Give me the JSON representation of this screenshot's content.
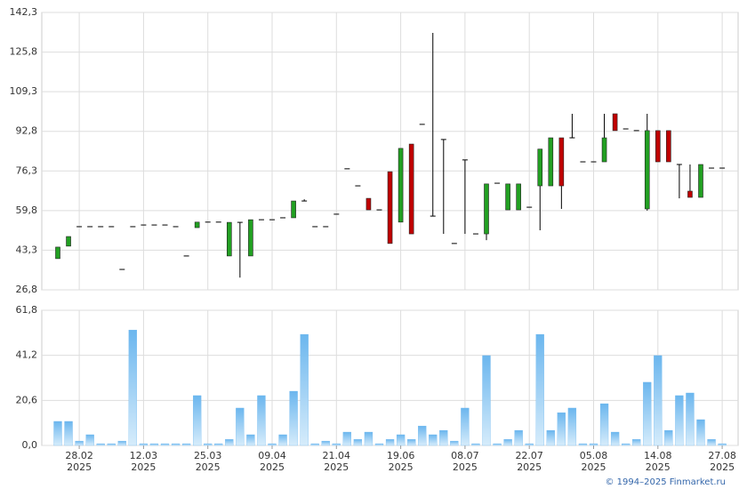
{
  "chart_data": [
    {
      "type": "candlestick",
      "ylim": [
        26.8,
        142.3
      ],
      "yticks": [
        {
          "value": 26.8,
          "label": "26,8"
        },
        {
          "value": 43.3,
          "label": "43,3"
        },
        {
          "value": 59.8,
          "label": "59,8"
        },
        {
          "value": 76.3,
          "label": "76,3"
        },
        {
          "value": 92.8,
          "label": "92,8"
        },
        {
          "value": 109.3,
          "label": "109,3"
        },
        {
          "value": 125.8,
          "label": "125,8"
        },
        {
          "value": 142.3,
          "label": "142,3"
        }
      ],
      "grid": true,
      "up_color": "#22a022",
      "down_color": "#c00000",
      "open": [
        39.8,
        45.0,
        53.1,
        53.1,
        53.1,
        53.1,
        35.3,
        53.1,
        53.8,
        53.8,
        53.8,
        53.1,
        40.9,
        52.7,
        55.0,
        55.0,
        40.9,
        54.9,
        40.9,
        56.0,
        56.0,
        56.8,
        56.8,
        63.8,
        53.1,
        53.1,
        58.3,
        77.2,
        70.1,
        64.9,
        60.1,
        76.0,
        55.0,
        87.5,
        95.7,
        57.5,
        89.4,
        46.1,
        80.9,
        50.1,
        50.1,
        71.2,
        60.1,
        60.1,
        61.2,
        70.1,
        70.1,
        90.1,
        90.1,
        80.1,
        80.1,
        80.1,
        100.1,
        93.8,
        93.1,
        60.5,
        93.1,
        93.1,
        79.0,
        67.9,
        65.3,
        77.5,
        77.5
      ],
      "high": [
        44.6,
        49.0,
        53.1,
        53.1,
        53.1,
        53.1,
        35.3,
        53.1,
        53.8,
        53.8,
        53.8,
        53.1,
        40.9,
        55.0,
        55.0,
        55.0,
        54.9,
        54.9,
        56.0,
        56.0,
        56.0,
        56.8,
        63.8,
        64.5,
        53.1,
        53.1,
        58.3,
        77.2,
        70.1,
        64.9,
        60.1,
        76.0,
        85.7,
        87.5,
        95.7,
        133.8,
        89.4,
        46.1,
        80.9,
        50.1,
        70.9,
        71.2,
        70.9,
        70.9,
        61.2,
        85.4,
        90.1,
        90.1,
        100.1,
        80.1,
        80.1,
        100.1,
        100.1,
        93.8,
        93.1,
        100.1,
        93.1,
        93.1,
        79.0,
        79.0,
        79.0,
        77.5,
        77.5
      ],
      "low": [
        39.8,
        45.0,
        53.1,
        53.1,
        53.1,
        53.1,
        35.3,
        53.1,
        53.8,
        53.8,
        53.8,
        53.1,
        40.9,
        52.7,
        55.0,
        55.0,
        40.9,
        31.9,
        40.9,
        56.0,
        56.0,
        56.8,
        56.8,
        63.8,
        53.1,
        53.1,
        58.3,
        77.2,
        70.1,
        60.1,
        60.1,
        46.1,
        55.0,
        50.1,
        95.7,
        57.5,
        50.1,
        46.1,
        50.1,
        50.1,
        47.5,
        71.2,
        60.1,
        60.1,
        61.2,
        51.6,
        70.1,
        60.5,
        90.1,
        80.1,
        80.1,
        80.1,
        93.1,
        93.8,
        93.1,
        59.8,
        80.1,
        80.1,
        64.9,
        65.3,
        65.3,
        77.5,
        77.5
      ],
      "close": [
        44.6,
        49.0,
        53.1,
        53.1,
        53.1,
        53.1,
        35.3,
        53.1,
        53.8,
        53.8,
        53.8,
        53.1,
        40.9,
        55.0,
        55.0,
        55.0,
        54.9,
        54.9,
        56.0,
        56.0,
        56.0,
        56.8,
        63.8,
        63.8,
        53.1,
        53.1,
        58.3,
        77.2,
        70.1,
        60.1,
        60.1,
        46.1,
        85.7,
        50.1,
        95.7,
        57.5,
        89.4,
        46.1,
        80.9,
        50.1,
        70.9,
        71.2,
        70.9,
        70.9,
        61.2,
        85.4,
        90.1,
        70.1,
        90.1,
        80.1,
        80.1,
        90.1,
        93.1,
        93.8,
        93.1,
        93.1,
        80.1,
        80.1,
        79.0,
        65.3,
        79.0,
        77.5,
        77.5
      ]
    },
    {
      "type": "bar",
      "ylim": [
        0,
        61.8
      ],
      "yticks": [
        {
          "value": 0,
          "label": "0,0"
        },
        {
          "value": 20.6,
          "label": "20,6"
        },
        {
          "value": 41.2,
          "label": "41,2"
        },
        {
          "value": 61.8,
          "label": "61,8"
        }
      ],
      "grid": true,
      "color": "#6bb6ee",
      "categories": [
        null,
        null,
        "28.02",
        null,
        null,
        null,
        null,
        null,
        "12.03",
        null,
        null,
        null,
        null,
        null,
        "25.03",
        null,
        null,
        null,
        null,
        null,
        "09.04",
        null,
        null,
        null,
        null,
        null,
        "21.04",
        null,
        null,
        null,
        null,
        null,
        "19.06",
        null,
        null,
        null,
        null,
        null,
        "08.07",
        null,
        null,
        null,
        null,
        null,
        "22.07",
        null,
        null,
        null,
        null,
        null,
        "05.08",
        null,
        null,
        null,
        null,
        null,
        "14.08",
        null,
        null,
        null,
        null,
        null,
        "27.08"
      ],
      "category_years": [
        null,
        null,
        "2025",
        null,
        null,
        null,
        null,
        null,
        "2025",
        null,
        null,
        null,
        null,
        null,
        "2025",
        null,
        null,
        null,
        null,
        null,
        "2025",
        null,
        null,
        null,
        null,
        null,
        "2025",
        null,
        null,
        null,
        null,
        null,
        "2025",
        null,
        null,
        null,
        null,
        null,
        "2025",
        null,
        null,
        null,
        null,
        null,
        "2025",
        null,
        null,
        null,
        null,
        null,
        "2025",
        null,
        null,
        null,
        null,
        null,
        "2025",
        null,
        null,
        null,
        null,
        null,
        "2025"
      ],
      "values": [
        11.0,
        11.0,
        2.0,
        4.9,
        0.8,
        0.8,
        2.0,
        52.8,
        0.8,
        0.8,
        0.8,
        0.8,
        0.8,
        22.8,
        0.8,
        0.8,
        2.8,
        17.1,
        4.9,
        22.8,
        0.8,
        4.9,
        24.8,
        50.8,
        0.8,
        2.0,
        0.8,
        6.1,
        2.8,
        6.1,
        0.8,
        2.8,
        4.9,
        2.8,
        8.9,
        4.9,
        6.9,
        2.0,
        17.1,
        0.8,
        41.1,
        0.8,
        2.8,
        6.9,
        0.8,
        50.8,
        6.9,
        15.0,
        17.1,
        0.8,
        0.8,
        19.1,
        6.1,
        0.8,
        2.8,
        28.9,
        41.1,
        6.9,
        22.8,
        24.0,
        11.8,
        2.8,
        0.8
      ]
    }
  ],
  "footer": "© 1994–2025 Finmarket.ru"
}
